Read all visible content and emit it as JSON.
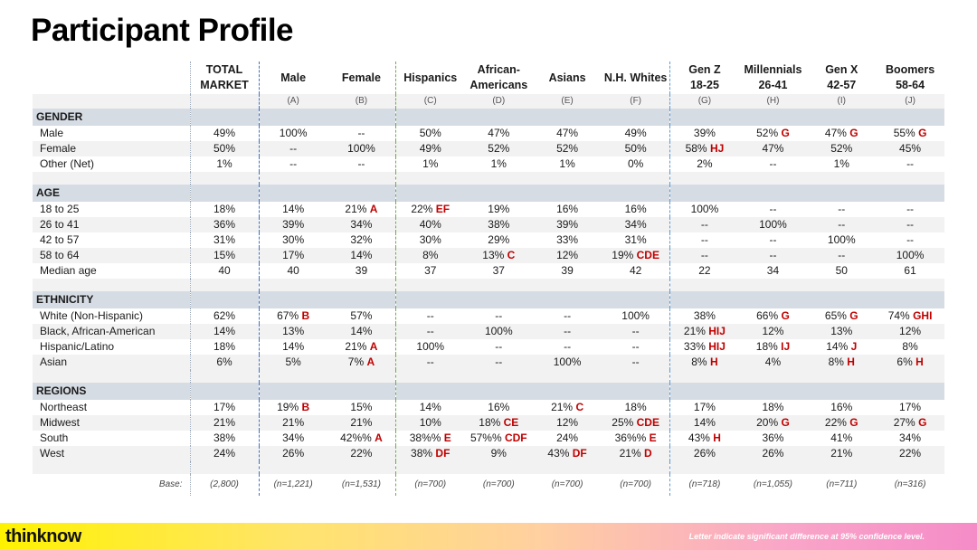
{
  "title": "Participant Profile",
  "columns": [
    {
      "name": "TOTAL\nMARKET",
      "letter": ""
    },
    {
      "name": "Male",
      "letter": "(A)"
    },
    {
      "name": "Female",
      "letter": "(B)"
    },
    {
      "name": "Hispanics",
      "letter": "(C)"
    },
    {
      "name": "African-\nAmericans",
      "letter": "(D)"
    },
    {
      "name": "Asians",
      "letter": "(E)"
    },
    {
      "name": "N.H. Whites",
      "letter": "(F)"
    },
    {
      "name": "Gen Z\n18-25",
      "letter": "(G)"
    },
    {
      "name": "Millennials\n26-41",
      "letter": "(H)"
    },
    {
      "name": "Gen X\n42-57",
      "letter": "(I)"
    },
    {
      "name": "Boomers\n58-64",
      "letter": "(J)"
    }
  ],
  "sections": [
    {
      "title": "GENDER",
      "rows": [
        {
          "label": "Male",
          "cells": [
            [
              "49%",
              ""
            ],
            [
              "100%",
              ""
            ],
            [
              "--",
              ""
            ],
            [
              "50%",
              ""
            ],
            [
              "47%",
              ""
            ],
            [
              "47%",
              ""
            ],
            [
              "49%",
              ""
            ],
            [
              "39%",
              ""
            ],
            [
              "52%",
              "G"
            ],
            [
              "47%",
              "G"
            ],
            [
              "55%",
              "G"
            ]
          ]
        },
        {
          "label": "Female",
          "cells": [
            [
              "50%",
              ""
            ],
            [
              "--",
              ""
            ],
            [
              "100%",
              ""
            ],
            [
              "49%",
              ""
            ],
            [
              "52%",
              ""
            ],
            [
              "52%",
              ""
            ],
            [
              "50%",
              ""
            ],
            [
              "58%",
              "HJ"
            ],
            [
              "47%",
              ""
            ],
            [
              "52%",
              ""
            ],
            [
              "45%",
              ""
            ]
          ]
        },
        {
          "label": "Other (Net)",
          "cells": [
            [
              "1%",
              ""
            ],
            [
              "--",
              ""
            ],
            [
              "--",
              ""
            ],
            [
              "1%",
              ""
            ],
            [
              "1%",
              ""
            ],
            [
              "1%",
              ""
            ],
            [
              "0%",
              ""
            ],
            [
              "2%",
              ""
            ],
            [
              "--",
              ""
            ],
            [
              "1%",
              ""
            ],
            [
              "--",
              ""
            ]
          ]
        }
      ]
    },
    {
      "title": "AGE",
      "rows": [
        {
          "label": "18 to 25",
          "cells": [
            [
              "18%",
              ""
            ],
            [
              "14%",
              ""
            ],
            [
              "21%",
              "A"
            ],
            [
              "22%",
              "EF"
            ],
            [
              "19%",
              ""
            ],
            [
              "16%",
              ""
            ],
            [
              "16%",
              ""
            ],
            [
              "100%",
              ""
            ],
            [
              "--",
              ""
            ],
            [
              "--",
              ""
            ],
            [
              "--",
              ""
            ]
          ]
        },
        {
          "label": "26 to 41",
          "cells": [
            [
              "36%",
              ""
            ],
            [
              "39%",
              ""
            ],
            [
              "34%",
              ""
            ],
            [
              "40%",
              ""
            ],
            [
              "38%",
              ""
            ],
            [
              "39%",
              ""
            ],
            [
              "34%",
              ""
            ],
            [
              "--",
              ""
            ],
            [
              "100%",
              ""
            ],
            [
              "--",
              ""
            ],
            [
              "--",
              ""
            ]
          ]
        },
        {
          "label": "42 to 57",
          "cells": [
            [
              "31%",
              ""
            ],
            [
              "30%",
              ""
            ],
            [
              "32%",
              ""
            ],
            [
              "30%",
              ""
            ],
            [
              "29%",
              ""
            ],
            [
              "33%",
              ""
            ],
            [
              "31%",
              ""
            ],
            [
              "--",
              ""
            ],
            [
              "--",
              ""
            ],
            [
              "100%",
              ""
            ],
            [
              "--",
              ""
            ]
          ]
        },
        {
          "label": "58 to 64",
          "cells": [
            [
              "15%",
              ""
            ],
            [
              "17%",
              ""
            ],
            [
              "14%",
              ""
            ],
            [
              "8%",
              ""
            ],
            [
              "13%",
              "C"
            ],
            [
              "12%",
              ""
            ],
            [
              "19%",
              "CDE"
            ],
            [
              "--",
              ""
            ],
            [
              "--",
              ""
            ],
            [
              "--",
              ""
            ],
            [
              "100%",
              ""
            ]
          ]
        },
        {
          "label": "Median age",
          "cells": [
            [
              "40",
              ""
            ],
            [
              "40",
              ""
            ],
            [
              "39",
              ""
            ],
            [
              "37",
              ""
            ],
            [
              "37",
              ""
            ],
            [
              "39",
              ""
            ],
            [
              "42",
              ""
            ],
            [
              "22",
              ""
            ],
            [
              "34",
              ""
            ],
            [
              "50",
              ""
            ],
            [
              "61",
              ""
            ]
          ]
        }
      ]
    },
    {
      "title": "ETHNICITY",
      "rows": [
        {
          "label": "White (Non-Hispanic)",
          "cells": [
            [
              "62%",
              ""
            ],
            [
              "67%",
              "B"
            ],
            [
              "57%",
              ""
            ],
            [
              "--",
              ""
            ],
            [
              "--",
              ""
            ],
            [
              "--",
              ""
            ],
            [
              "100%",
              ""
            ],
            [
              "38%",
              ""
            ],
            [
              "66%",
              "G"
            ],
            [
              "65%",
              "G"
            ],
            [
              "74%",
              "GHI"
            ]
          ]
        },
        {
          "label": "Black, African-American",
          "cells": [
            [
              "14%",
              ""
            ],
            [
              "13%",
              ""
            ],
            [
              "14%",
              ""
            ],
            [
              "--",
              ""
            ],
            [
              "100%",
              ""
            ],
            [
              "--",
              ""
            ],
            [
              "--",
              ""
            ],
            [
              "21%",
              "HIJ"
            ],
            [
              "12%",
              ""
            ],
            [
              "13%",
              ""
            ],
            [
              "12%",
              ""
            ]
          ]
        },
        {
          "label": "Hispanic/Latino",
          "cells": [
            [
              "18%",
              ""
            ],
            [
              "14%",
              ""
            ],
            [
              "21%",
              "A"
            ],
            [
              "100%",
              ""
            ],
            [
              "--",
              ""
            ],
            [
              "--",
              ""
            ],
            [
              "--",
              ""
            ],
            [
              "33%",
              "HIJ"
            ],
            [
              "18%",
              "IJ"
            ],
            [
              "14%",
              "J"
            ],
            [
              "8%",
              ""
            ]
          ]
        },
        {
          "label": "Asian",
          "cells": [
            [
              "6%",
              ""
            ],
            [
              "5%",
              ""
            ],
            [
              "7%",
              "A"
            ],
            [
              "--",
              ""
            ],
            [
              "--",
              ""
            ],
            [
              "100%",
              ""
            ],
            [
              "--",
              ""
            ],
            [
              "8%",
              "H"
            ],
            [
              "4%",
              ""
            ],
            [
              "8%",
              "H"
            ],
            [
              "6%",
              "H"
            ]
          ]
        }
      ]
    },
    {
      "title": "REGIONS",
      "rows": [
        {
          "label": "Northeast",
          "cells": [
            [
              "17%",
              ""
            ],
            [
              "19%",
              "B"
            ],
            [
              "15%",
              ""
            ],
            [
              "14%",
              ""
            ],
            [
              "16%",
              ""
            ],
            [
              "21%",
              "C"
            ],
            [
              "18%",
              ""
            ],
            [
              "17%",
              ""
            ],
            [
              "18%",
              ""
            ],
            [
              "16%",
              ""
            ],
            [
              "17%",
              ""
            ]
          ]
        },
        {
          "label": "Midwest",
          "cells": [
            [
              "21%",
              ""
            ],
            [
              "21%",
              ""
            ],
            [
              "21%",
              ""
            ],
            [
              "10%",
              ""
            ],
            [
              "18%",
              "CE"
            ],
            [
              "12%",
              ""
            ],
            [
              "25%",
              "CDE"
            ],
            [
              "14%",
              ""
            ],
            [
              "20%",
              "G"
            ],
            [
              "22%",
              "G"
            ],
            [
              "27%",
              "G"
            ]
          ]
        },
        {
          "label": "South",
          "cells": [
            [
              "38%",
              ""
            ],
            [
              "34%",
              ""
            ],
            [
              "42%%",
              "A"
            ],
            [
              "38%%",
              "E"
            ],
            [
              "57%%",
              "CDF"
            ],
            [
              "24%",
              ""
            ],
            [
              "36%%",
              "E"
            ],
            [
              "43%",
              "H"
            ],
            [
              "36%",
              ""
            ],
            [
              "41%",
              ""
            ],
            [
              "34%",
              ""
            ]
          ]
        },
        {
          "label": "West",
          "cells": [
            [
              "24%",
              ""
            ],
            [
              "26%",
              ""
            ],
            [
              "22%",
              ""
            ],
            [
              "38%",
              "DF"
            ],
            [
              "9%",
              ""
            ],
            [
              "43%",
              "DF"
            ],
            [
              "21%",
              "D"
            ],
            [
              "26%",
              ""
            ],
            [
              "26%",
              ""
            ],
            [
              "21%",
              ""
            ],
            [
              "22%",
              ""
            ]
          ]
        }
      ]
    }
  ],
  "base": {
    "label": "Base:",
    "values": [
      "(2,800)",
      "(n=1,221)",
      "(n=1,531)",
      "(n=700)",
      "(n=700)",
      "(n=700)",
      "(n=700)",
      "(n=718)",
      "(n=1,055)",
      "(n=711)",
      "(n=316)"
    ]
  },
  "footer": {
    "logo": "thinknow",
    "note": "Letter indicate significant difference at 95% confidence level."
  }
}
